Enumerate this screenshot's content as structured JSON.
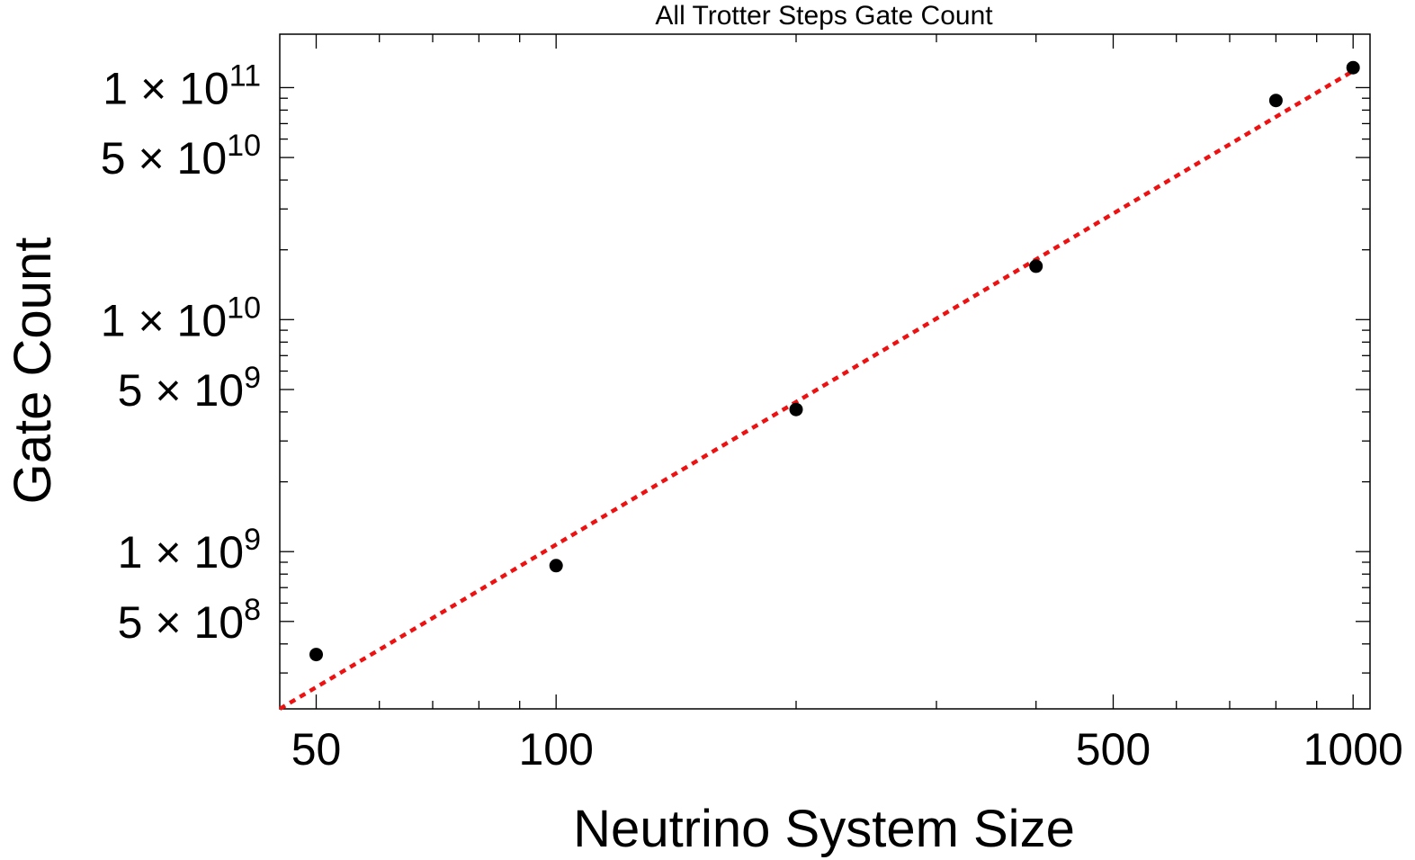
{
  "chart_data": {
    "type": "scatter",
    "title": "All Trotter Steps Gate Count",
    "xlabel": "Neutrino System Size",
    "ylabel": "Gate Count",
    "x_scale": "log",
    "y_scale": "log",
    "xlim": [
      45,
      1050
    ],
    "ylim": [
      210000000,
      170000000000
    ],
    "grid": false,
    "x_ticks": [
      {
        "value": 50,
        "label": "50"
      },
      {
        "value": 100,
        "label": "100"
      },
      {
        "value": 500,
        "label": "500"
      },
      {
        "value": 1000,
        "label": "1000"
      }
    ],
    "y_ticks": [
      {
        "value": 500000000,
        "mantissa": "5",
        "base": "10",
        "exponent": "8"
      },
      {
        "value": 1000000000,
        "mantissa": "1",
        "base": "10",
        "exponent": "9"
      },
      {
        "value": 5000000000,
        "mantissa": "5",
        "base": "10",
        "exponent": "9"
      },
      {
        "value": 10000000000,
        "mantissa": "1",
        "base": "10",
        "exponent": "10"
      },
      {
        "value": 50000000000,
        "mantissa": "5",
        "base": "10",
        "exponent": "10"
      },
      {
        "value": 100000000000,
        "mantissa": "1",
        "base": "10",
        "exponent": "11"
      }
    ],
    "series": [
      {
        "style": "points",
        "color": "#000000",
        "x": [
          50,
          100,
          200,
          400,
          800,
          1000
        ],
        "y": [
          360000000,
          870000000,
          4100000000,
          17000000000,
          88000000000,
          122000000000
        ]
      },
      {
        "style": "dotted-line",
        "color": "#ee1111",
        "x": [
          45,
          1000
        ],
        "y": [
          210000000,
          118000000000
        ]
      }
    ]
  }
}
